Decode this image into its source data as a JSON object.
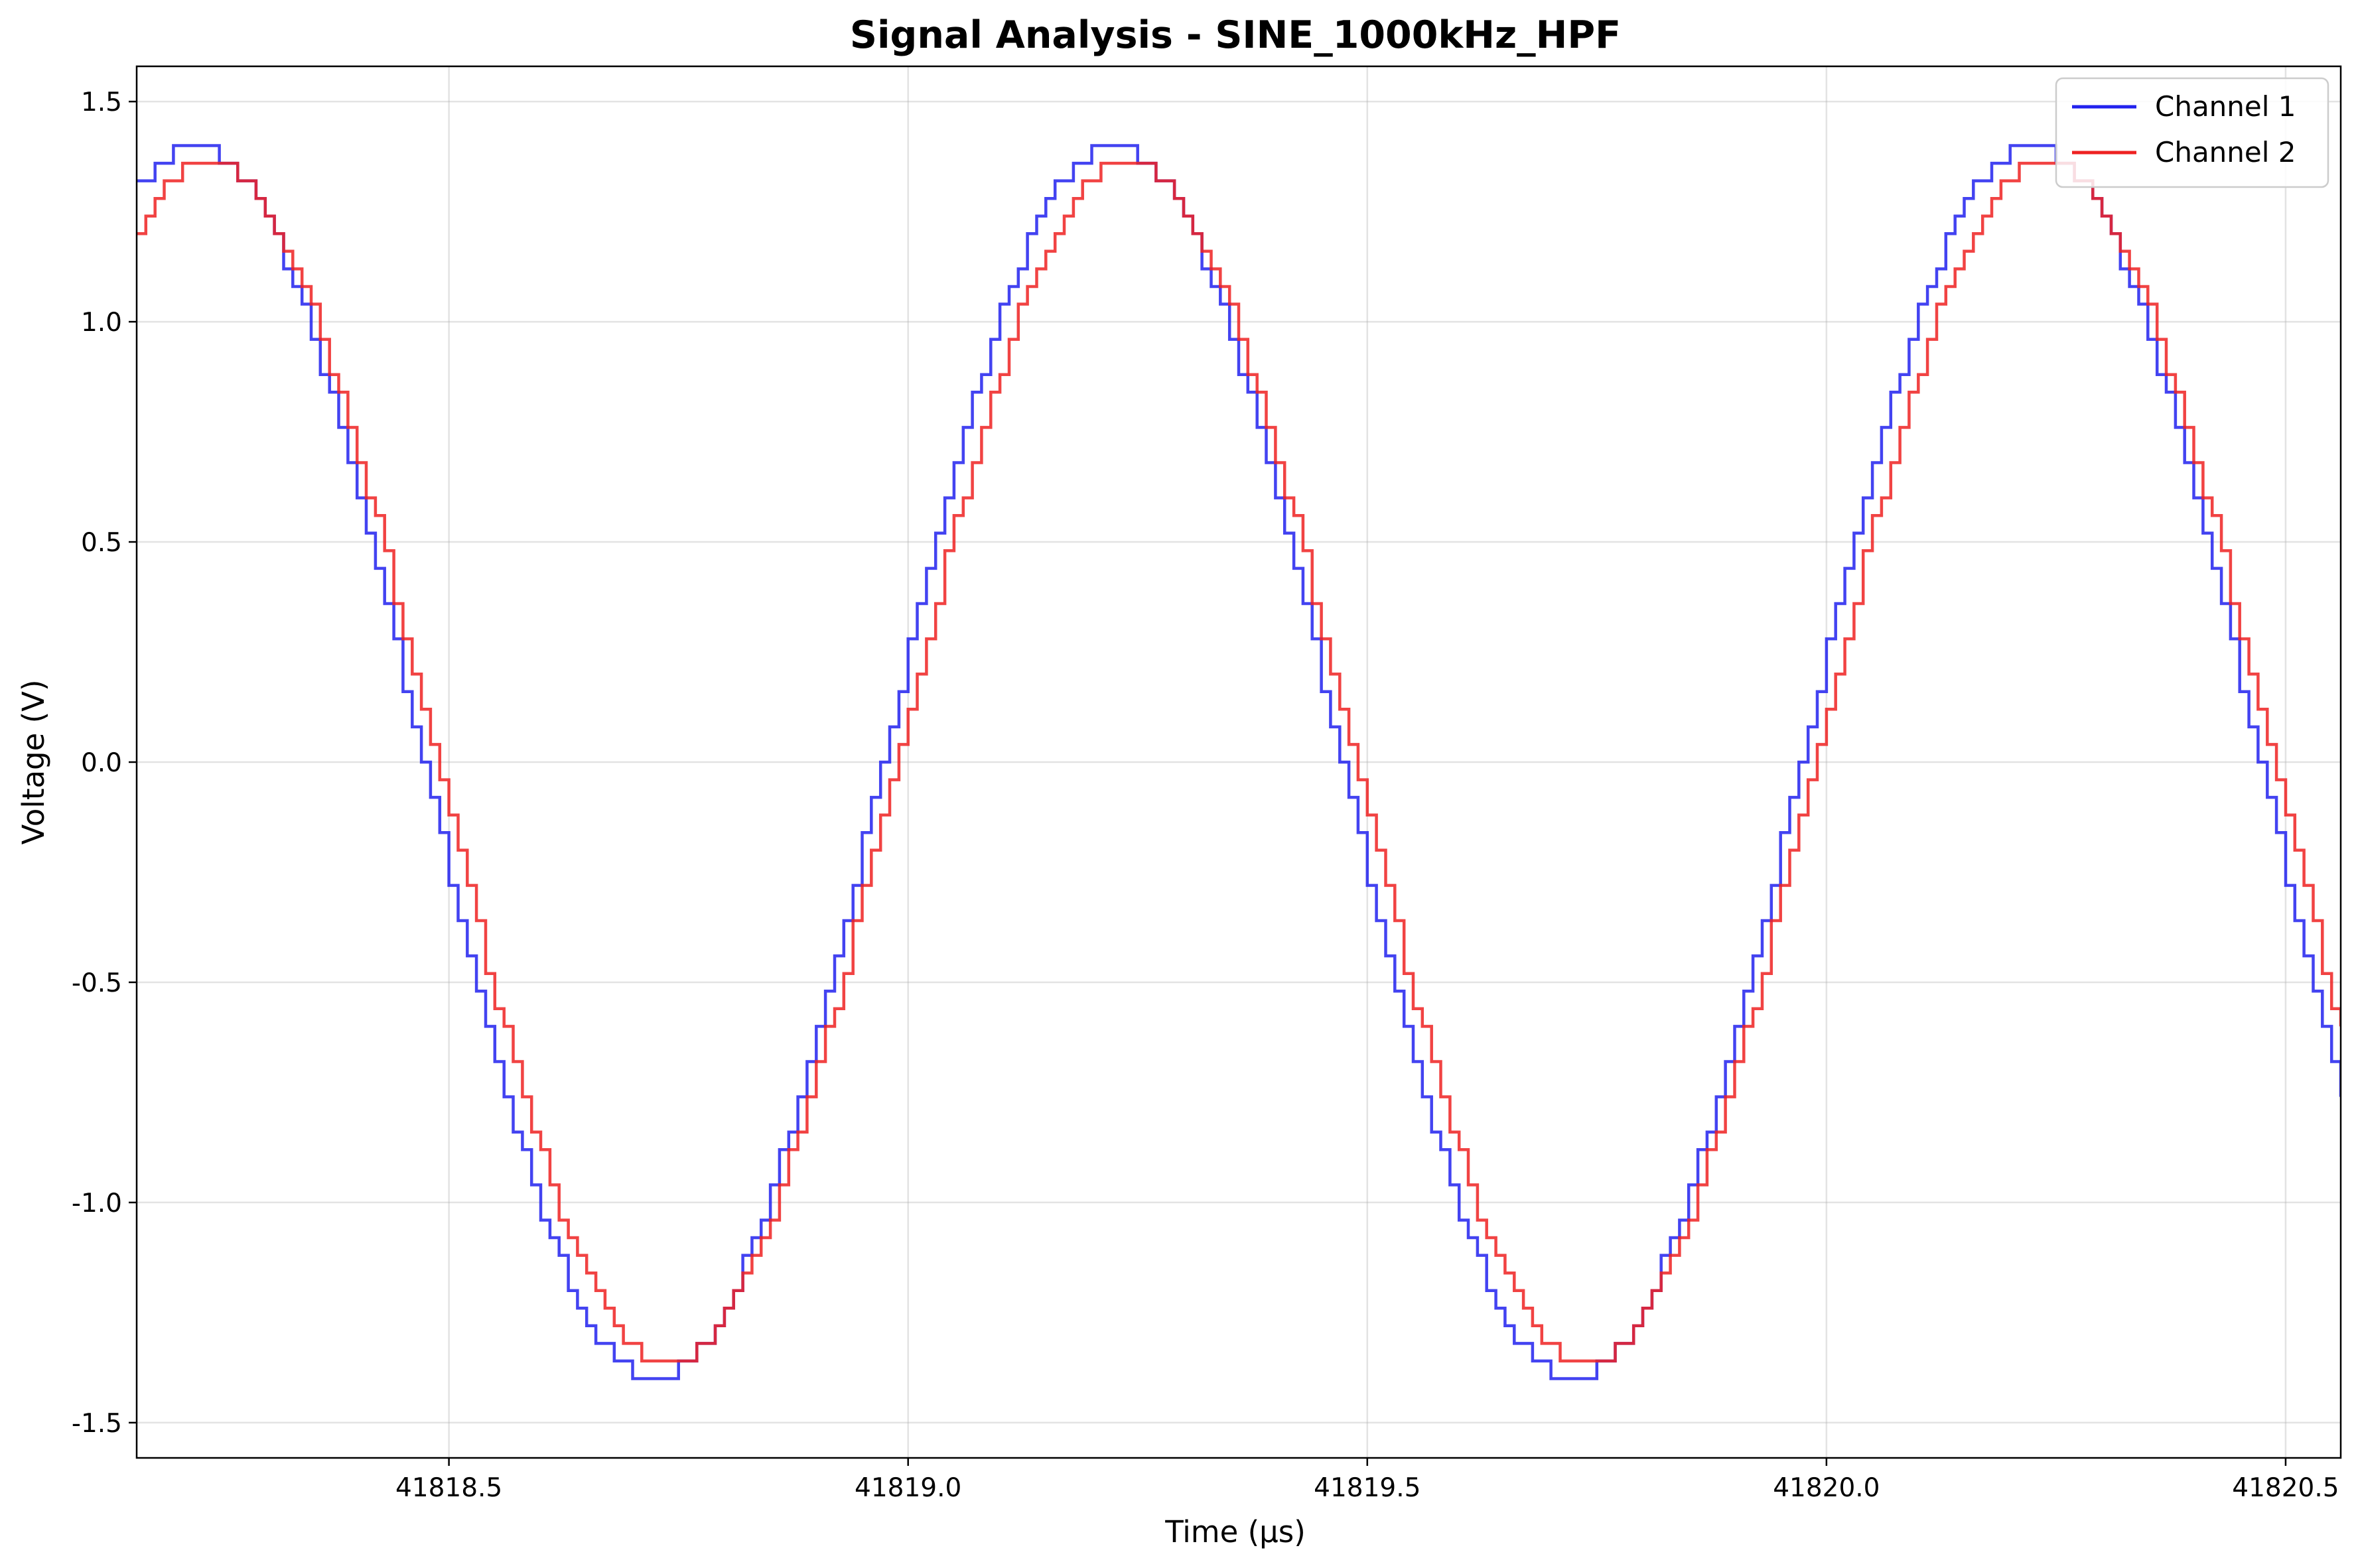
{
  "chart_data": {
    "type": "line",
    "title": "Signal Analysis - SINE_1000kHz_HPF",
    "xlabel": "Time (µs)",
    "ylabel": "Voltage (V)",
    "xlim": [
      41818.16,
      41820.56
    ],
    "ylim": [
      -1.58,
      1.58
    ],
    "x_ticks": [
      41818.5,
      41819.0,
      41819.5,
      41820.0,
      41820.5
    ],
    "x_tick_labels": [
      "41818.5",
      "41819.0",
      "41819.5",
      "41820.0",
      "41820.5"
    ],
    "y_ticks": [
      -1.5,
      -1.0,
      -0.5,
      0.0,
      0.5,
      1.0,
      1.5
    ],
    "y_tick_labels": [
      "-1.5",
      "-1.0",
      "-0.5",
      "0.0",
      "0.5",
      "1.0",
      "1.5"
    ],
    "grid": true,
    "legend_position": "top-right",
    "series": [
      {
        "name": "Channel 1",
        "color": "#2222ee",
        "x_start": 41818.16,
        "x_end": 41820.56,
        "frequency_mhz": 1.0,
        "amplitude_v": 1.4,
        "peak_time_us": 41819.22,
        "quantization_step_v": 0.04,
        "sampling_interval_us": 0.01
      },
      {
        "name": "Channel 2",
        "color": "#ee2222",
        "x_start": 41818.16,
        "x_end": 41820.56,
        "frequency_mhz": 1.0,
        "amplitude_v": 1.36,
        "peak_time_us": 41819.235,
        "quantization_step_v": 0.04,
        "sampling_interval_us": 0.01
      }
    ]
  }
}
